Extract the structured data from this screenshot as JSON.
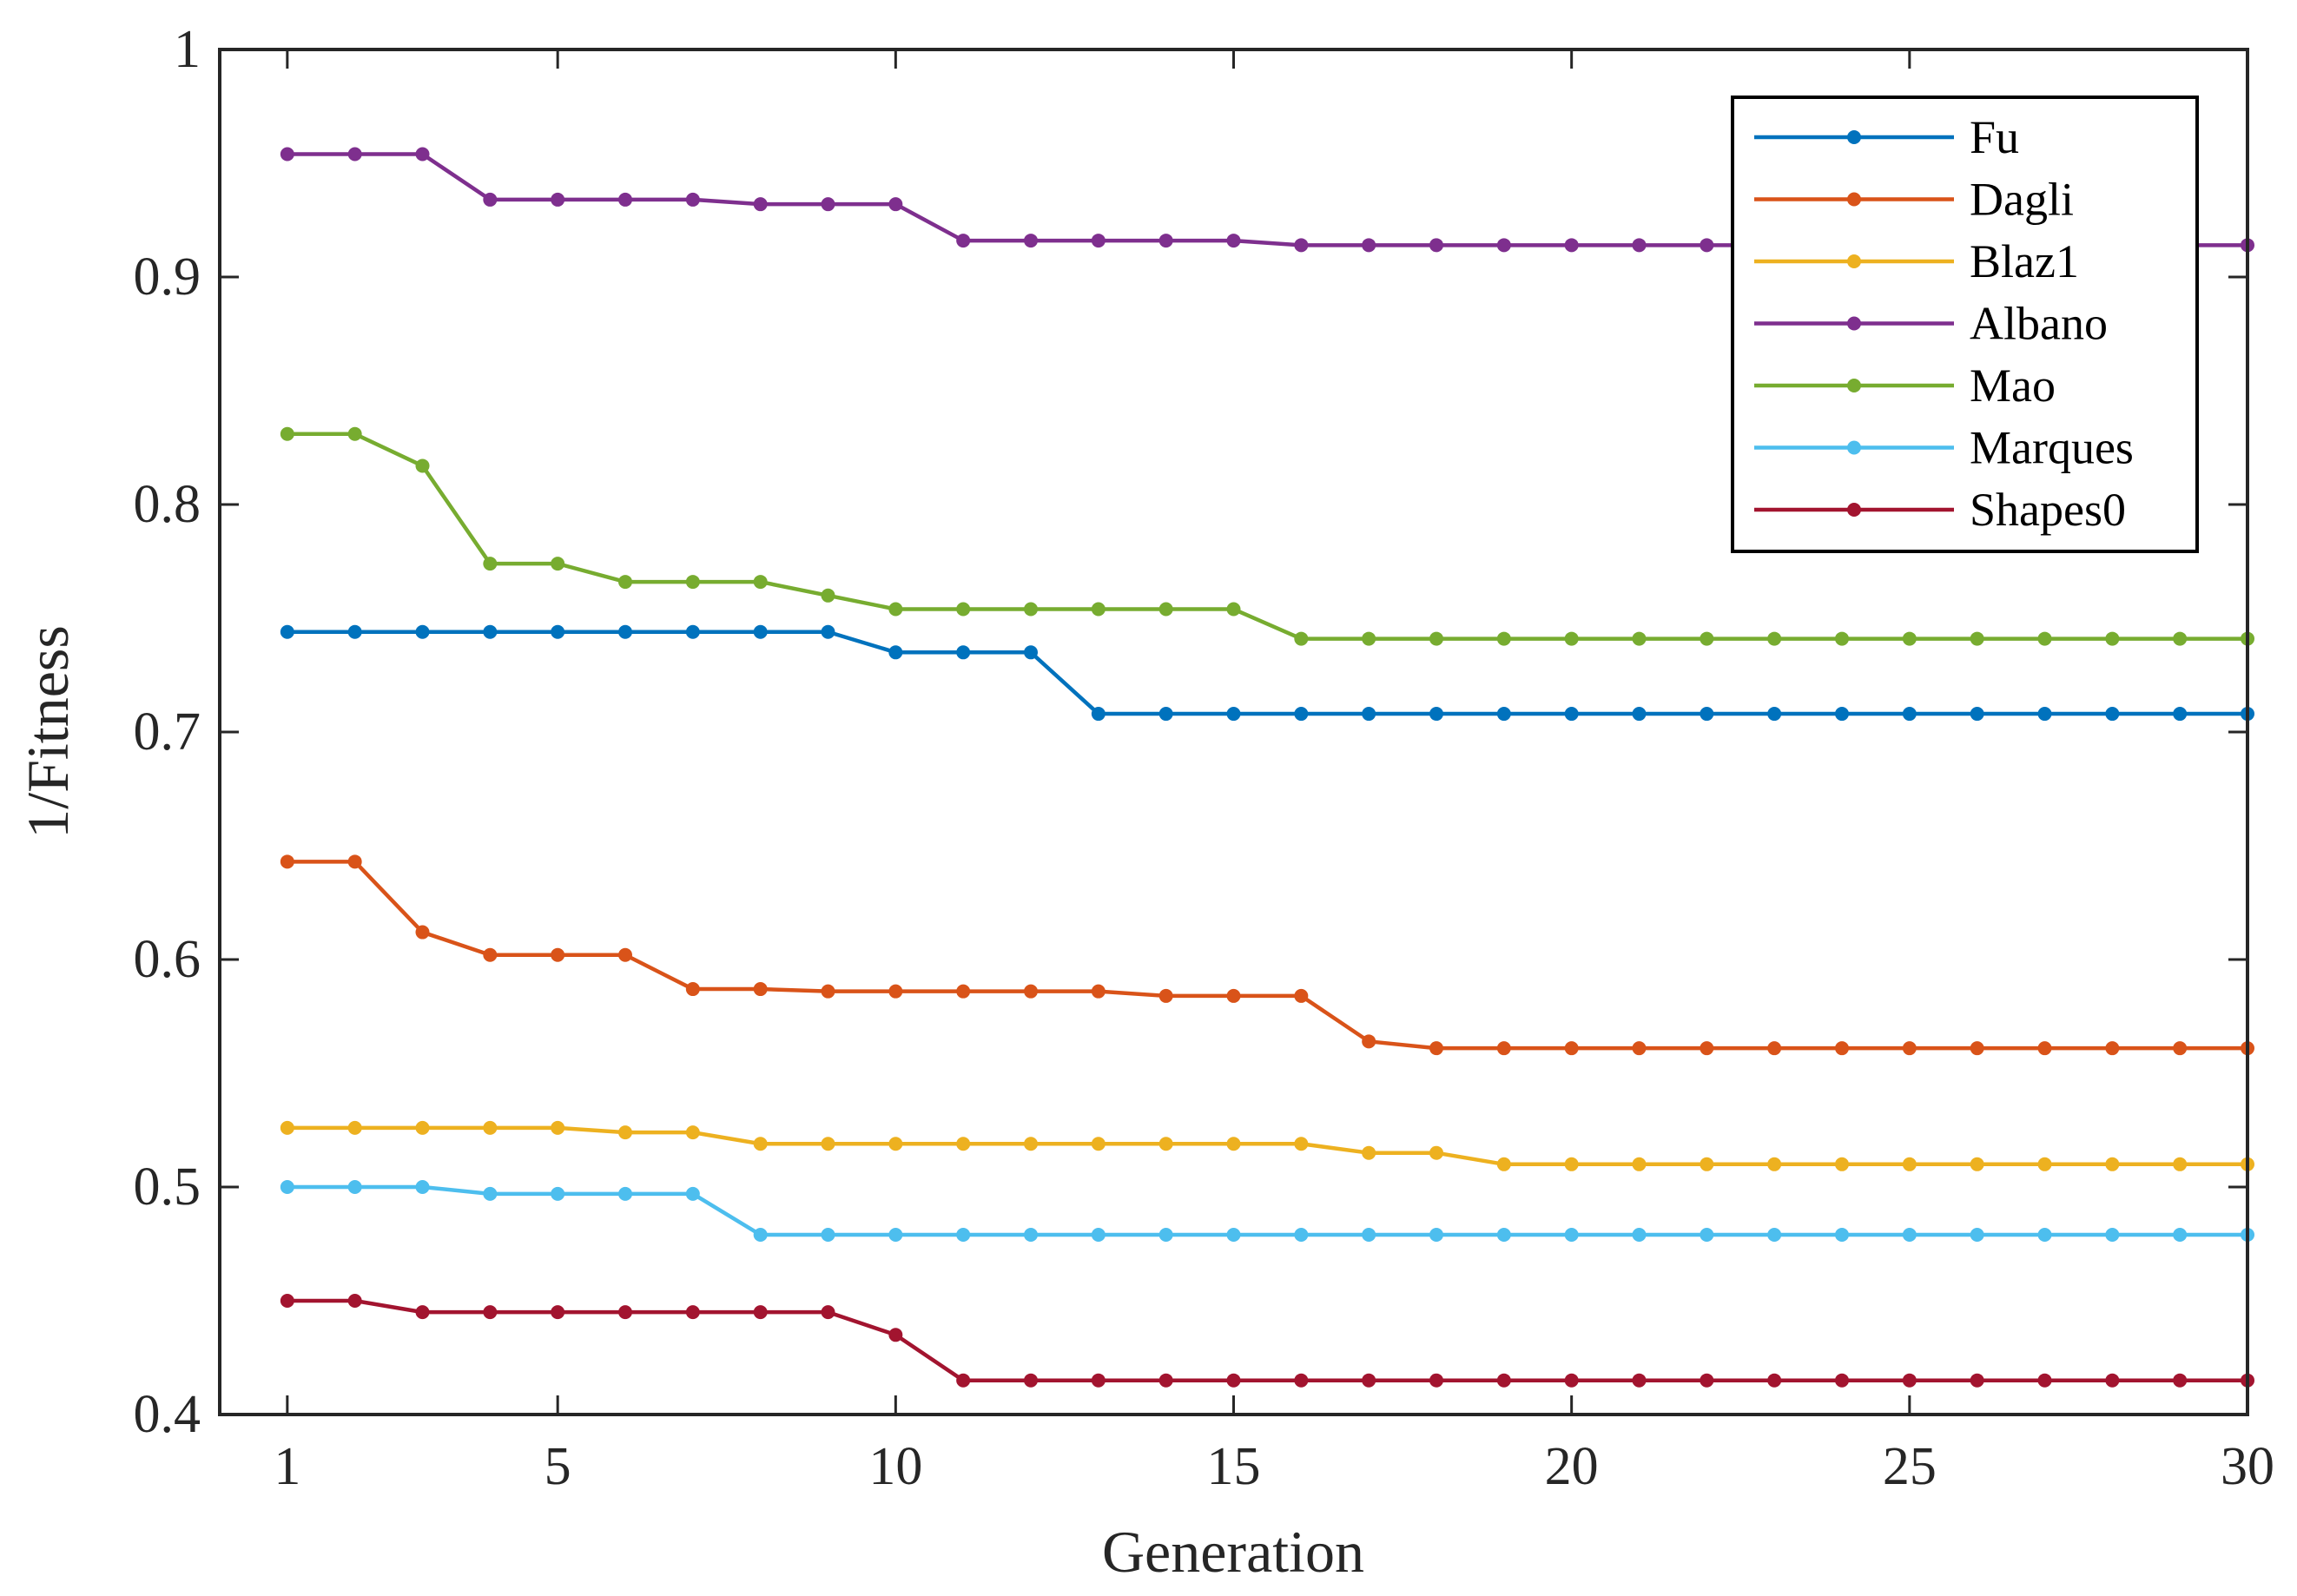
{
  "chart_data": {
    "type": "line",
    "title": "",
    "xlabel": "Generation",
    "ylabel": "1/Fitness",
    "xlim": [
      0,
      30
    ],
    "ylim": [
      0.4,
      1.0
    ],
    "xticks": [
      1,
      5,
      10,
      15,
      20,
      25,
      30
    ],
    "xtick_labels": [
      "1",
      "5",
      "10",
      "15",
      "20",
      "25",
      "30"
    ],
    "yticks": [
      0.4,
      0.5,
      0.6,
      0.7,
      0.8,
      0.9,
      1.0
    ],
    "ytick_labels": [
      "0.4",
      "0.5",
      "0.6",
      "0.7",
      "0.8",
      "0.9",
      "1"
    ],
    "grid": false,
    "legend_position": "top-right",
    "x": [
      1,
      2,
      3,
      4,
      5,
      6,
      7,
      8,
      9,
      10,
      11,
      12,
      13,
      14,
      15,
      16,
      17,
      18,
      19,
      20,
      21,
      22,
      23,
      24,
      25,
      26,
      27,
      28,
      29,
      30
    ],
    "series": [
      {
        "name": "Fu",
        "color": "#0072BD",
        "values": [
          0.744,
          0.744,
          0.744,
          0.744,
          0.744,
          0.744,
          0.744,
          0.744,
          0.744,
          0.735,
          0.735,
          0.735,
          0.708,
          0.708,
          0.708,
          0.708,
          0.708,
          0.708,
          0.708,
          0.708,
          0.708,
          0.708,
          0.708,
          0.708,
          0.708,
          0.708,
          0.708,
          0.708,
          0.708,
          0.708
        ]
      },
      {
        "name": "Dagli",
        "color": "#D95319",
        "values": [
          0.643,
          0.643,
          0.612,
          0.602,
          0.602,
          0.602,
          0.587,
          0.587,
          0.586,
          0.586,
          0.586,
          0.586,
          0.586,
          0.584,
          0.584,
          0.584,
          0.564,
          0.561,
          0.561,
          0.561,
          0.561,
          0.561,
          0.561,
          0.561,
          0.561,
          0.561,
          0.561,
          0.561,
          0.561,
          0.561
        ]
      },
      {
        "name": "Blaz1",
        "color": "#EDB120",
        "values": [
          0.526,
          0.526,
          0.526,
          0.526,
          0.526,
          0.524,
          0.524,
          0.519,
          0.519,
          0.519,
          0.519,
          0.519,
          0.519,
          0.519,
          0.519,
          0.519,
          0.515,
          0.515,
          0.51,
          0.51,
          0.51,
          0.51,
          0.51,
          0.51,
          0.51,
          0.51,
          0.51,
          0.51,
          0.51,
          0.51
        ]
      },
      {
        "name": "Albano",
        "color": "#7E2F8E",
        "values": [
          0.954,
          0.954,
          0.954,
          0.934,
          0.934,
          0.934,
          0.934,
          0.932,
          0.932,
          0.932,
          0.916,
          0.916,
          0.916,
          0.916,
          0.916,
          0.914,
          0.914,
          0.914,
          0.914,
          0.914,
          0.914,
          0.914,
          0.914,
          0.914,
          0.914,
          0.914,
          0.914,
          0.914,
          0.914,
          0.914
        ]
      },
      {
        "name": "Mao",
        "color": "#77AC30",
        "values": [
          0.831,
          0.831,
          0.817,
          0.774,
          0.774,
          0.766,
          0.766,
          0.766,
          0.76,
          0.754,
          0.754,
          0.754,
          0.754,
          0.754,
          0.754,
          0.741,
          0.741,
          0.741,
          0.741,
          0.741,
          0.741,
          0.741,
          0.741,
          0.741,
          0.741,
          0.741,
          0.741,
          0.741,
          0.741,
          0.741
        ]
      },
      {
        "name": "Marques",
        "color": "#4DBEEE",
        "values": [
          0.5,
          0.5,
          0.5,
          0.497,
          0.497,
          0.497,
          0.497,
          0.479,
          0.479,
          0.479,
          0.479,
          0.479,
          0.479,
          0.479,
          0.479,
          0.479,
          0.479,
          0.479,
          0.479,
          0.479,
          0.479,
          0.479,
          0.479,
          0.479,
          0.479,
          0.479,
          0.479,
          0.479,
          0.479,
          0.479
        ]
      },
      {
        "name": "Shapes0",
        "color": "#A2142F",
        "values": [
          0.45,
          0.45,
          0.445,
          0.445,
          0.445,
          0.445,
          0.445,
          0.445,
          0.445,
          0.435,
          0.415,
          0.415,
          0.415,
          0.415,
          0.415,
          0.415,
          0.415,
          0.415,
          0.415,
          0.415,
          0.415,
          0.415,
          0.415,
          0.415,
          0.415,
          0.415,
          0.415,
          0.415,
          0.415,
          0.415
        ]
      }
    ]
  }
}
